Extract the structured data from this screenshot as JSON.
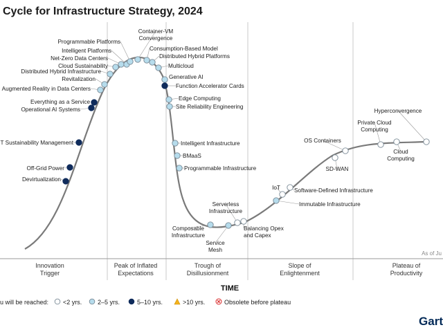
{
  "title": "Cycle for Infrastructure Strategy, 2024",
  "as_of": "As of Ju",
  "brand": "Gart",
  "legend": {
    "prefix": "u will be reached:",
    "items": [
      {
        "label": "<2 yrs.",
        "color": "#ffffff"
      },
      {
        "label": "2–5 yrs.",
        "color": "#b6dcec"
      },
      {
        "label": "5–10 yrs.",
        "color": "#0f2b5b"
      },
      {
        "label": ">10 yrs.",
        "color": "#f5b31d"
      },
      {
        "label": "Obsolete before plateau",
        "color": "#d92b2b"
      }
    ]
  },
  "chart_data": {
    "type": "scatter",
    "title": "Cycle for Infrastructure Strategy, 2024",
    "xlabel": "TIME",
    "ylabel": "",
    "phases": [
      "Innovation\nTrigger",
      "Peak of Inflated\nExpectations",
      "Trough of\nDisillusionment",
      "Slope of\nEnlightenment",
      "Plateau of\nProductivity"
    ],
    "categories": [
      "<2 yrs.",
      "2–5 yrs.",
      "5–10 yrs.",
      ">10 yrs.",
      "Obsolete before plateau"
    ],
    "points": [
      {
        "name": "Devirtualization",
        "cat": 2
      },
      {
        "name": "Off-Grid Power",
        "cat": 2
      },
      {
        "name": "IT Sustainability Management",
        "cat": 2
      },
      {
        "name": "Operational AI Systems",
        "cat": 2
      },
      {
        "name": "Everything as a Service",
        "cat": 2
      },
      {
        "name": "Augmented Reality in Data Centers",
        "cat": 1
      },
      {
        "name": "Revitalization",
        "cat": 1
      },
      {
        "name": "Distributed Hybrid Infrastructure",
        "cat": 1
      },
      {
        "name": "Cloud Sustainability",
        "cat": 1
      },
      {
        "name": "Net-Zero Data Centers",
        "cat": 1
      },
      {
        "name": "Intelligent Platforms",
        "cat": 1
      },
      {
        "name": "Programmable Platforms",
        "cat": 1
      },
      {
        "name": "Container-VM Convergence",
        "cat": 1
      },
      {
        "name": "Consumption-Based Model",
        "cat": 1
      },
      {
        "name": "Distributed Hybrid Platforms",
        "cat": 1
      },
      {
        "name": "Multicloud",
        "cat": 1
      },
      {
        "name": "Generative AI",
        "cat": 1
      },
      {
        "name": "Function Accelerator Cards",
        "cat": 2
      },
      {
        "name": "Edge Computing",
        "cat": 1
      },
      {
        "name": "Site Reliability Engineering",
        "cat": 1
      },
      {
        "name": "Intelligent Infrastructure",
        "cat": 1
      },
      {
        "name": "BMaaS",
        "cat": 1
      },
      {
        "name": "Programmable Infrastructure",
        "cat": 1
      },
      {
        "name": "Composable Infrastructure",
        "cat": 1
      },
      {
        "name": "Service Mesh",
        "cat": 1
      },
      {
        "name": "Serverless Infrastructure",
        "cat": 0
      },
      {
        "name": "Balancing Opex and Capex",
        "cat": 0
      },
      {
        "name": "Immutable Infrastructure",
        "cat": 1
      },
      {
        "name": "IoT",
        "cat": 0
      },
      {
        "name": "Software-Defined Infrastructure",
        "cat": 0
      },
      {
        "name": "SD-WAN",
        "cat": 0
      },
      {
        "name": "OS Containers",
        "cat": 0
      },
      {
        "name": "Private Cloud Computing",
        "cat": 0
      },
      {
        "name": "Cloud Computing",
        "cat": 0
      },
      {
        "name": "Hyperconvergence",
        "cat": 0
      }
    ]
  }
}
